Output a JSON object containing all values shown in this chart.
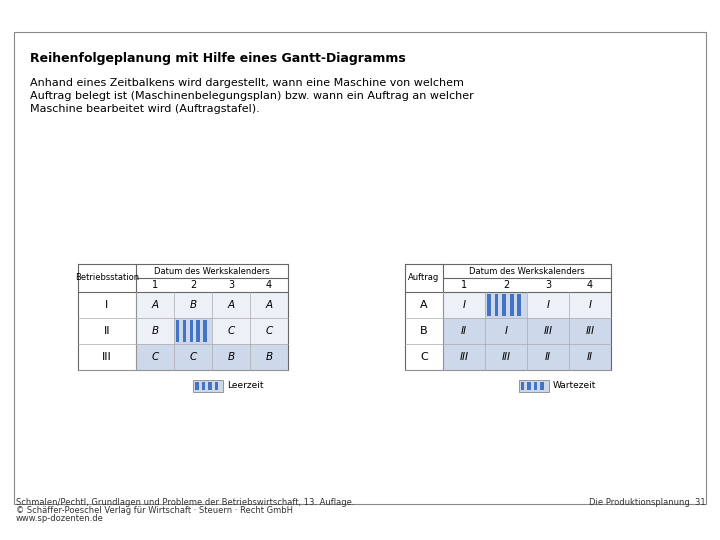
{
  "title": "Reihenfolgeplanung mit Hilfe eines Gantt-Diagramms",
  "description_lines": [
    "Anhand eines Zeitbalkens wird dargestellt, wann eine Maschine von welchem",
    "Auftrag belegt ist (Maschinenbelegungsplan) bzw. wann ein Auftrag an welcher",
    "Maschine bearbeitet wird (Auftragstafel)."
  ],
  "left_table": {
    "col_header_top": "Datum des Werkskalenders",
    "col_header_nums": [
      "1",
      "2",
      "3",
      "4"
    ],
    "row_header_label": "Betriebsstation",
    "rows": [
      {
        "label": "I",
        "cells": [
          "A",
          "B",
          "A",
          "A"
        ],
        "has_leerzeit": false,
        "leerzeit_col": -1
      },
      {
        "label": "II",
        "cells": [
          "B",
          "",
          "C",
          "C"
        ],
        "has_leerzeit": true,
        "leerzeit_col": 1
      },
      {
        "label": "III",
        "cells": [
          "C",
          "C",
          "B",
          "B"
        ],
        "has_leerzeit": false,
        "leerzeit_col": -1
      }
    ],
    "legend_label": "Leerzeit"
  },
  "right_table": {
    "col_header_top": "Datum des Werkskalenders",
    "col_header_nums": [
      "1",
      "2",
      "3",
      "4"
    ],
    "row_header_label": "Auftrag",
    "rows": [
      {
        "label": "A",
        "cells": [
          "I",
          "",
          "I",
          "I"
        ],
        "has_wartezeit": true,
        "wartezeit_col": 1
      },
      {
        "label": "B",
        "cells": [
          "II",
          "I",
          "III",
          "III"
        ],
        "has_wartezeit": false,
        "wartezeit_col": -1
      },
      {
        "label": "C",
        "cells": [
          "III",
          "III",
          "II",
          "II"
        ],
        "has_wartezeit": false,
        "wartezeit_col": -1
      }
    ],
    "legend_label": "Wartezeit"
  },
  "footer_left": [
    "Schmalen/Pechtl, Grundlagen und Probleme der Betriebswirtschaft, 13. Auflage.",
    "© Schäffer-Poeschel Verlag für Wirtschaft · Steuern · Recht GmbH",
    "www.sp-dozenten.de"
  ],
  "footer_right": "Die Produktionsplanung  31",
  "cell_bg_light": "#cdd9ea",
  "cell_bg_white": "#edf1f7",
  "stripe_color": "#4472c4",
  "stripe_bg": "#cdd9ea",
  "title_font_size": 9,
  "body_font_size": 8,
  "table_font_size": 7,
  "footer_font_size": 6
}
